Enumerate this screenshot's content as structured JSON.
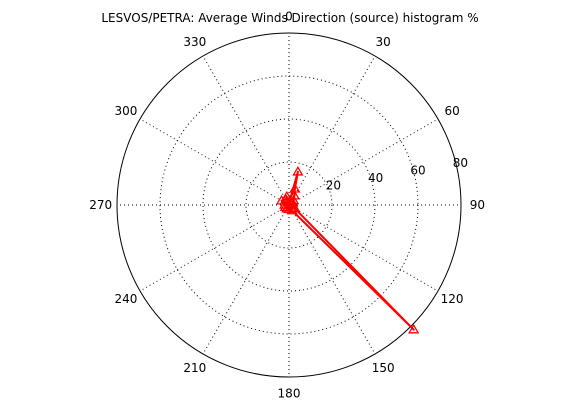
{
  "chart_data": {
    "type": "polar-line",
    "title": "LESVOS/PETRA: Average Winds Direction (source) histogram %",
    "rlim": [
      0,
      80
    ],
    "radial_ticks": [
      20,
      40,
      60,
      80
    ],
    "angle_ticks": [
      "0",
      "30",
      "60",
      "90",
      "120",
      "150",
      "180",
      "210",
      "240",
      "270",
      "300",
      "330"
    ],
    "angle_zero": "top",
    "angle_direction": "clockwise",
    "grid": "dotted",
    "series": [
      {
        "color": "#ff0000",
        "marker": "triangle",
        "points": [
          {
            "theta": 0,
            "r": 0
          },
          {
            "theta": 10,
            "r": 2
          },
          {
            "theta": 15,
            "r": 16
          },
          {
            "theta": 20,
            "r": 8
          },
          {
            "theta": 30,
            "r": 5
          },
          {
            "theta": 45,
            "r": 3
          },
          {
            "theta": 60,
            "r": 2
          },
          {
            "theta": 80,
            "r": 1
          },
          {
            "theta": 100,
            "r": 2
          },
          {
            "theta": 120,
            "r": 3
          },
          {
            "theta": 135,
            "r": 82
          },
          {
            "theta": 150,
            "r": 3
          },
          {
            "theta": 180,
            "r": 2
          },
          {
            "theta": 210,
            "r": 2
          },
          {
            "theta": 240,
            "r": 2
          },
          {
            "theta": 270,
            "r": 2
          },
          {
            "theta": 300,
            "r": 4
          },
          {
            "theta": 330,
            "r": 3
          },
          {
            "theta": 345,
            "r": 4
          },
          {
            "theta": 0,
            "r": 0
          }
        ]
      }
    ]
  }
}
